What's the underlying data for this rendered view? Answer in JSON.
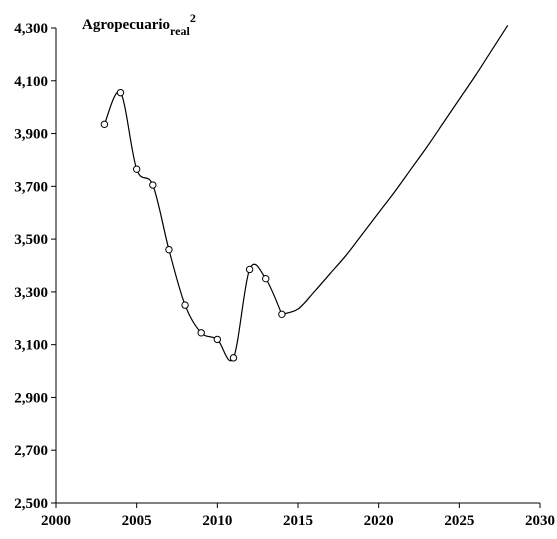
{
  "chart_data": {
    "type": "line",
    "title": {
      "base": "Agropecuario",
      "subscript": "real",
      "superscript": "2"
    },
    "xlabel": "",
    "ylabel": "",
    "xlim": [
      2000,
      2030
    ],
    "ylim": [
      2500,
      4300
    ],
    "x_ticks": [
      2000,
      2005,
      2010,
      2015,
      2020,
      2025,
      2030
    ],
    "x_tick_labels": [
      "2000",
      "2005",
      "2010",
      "2015",
      "2020",
      "2025",
      "2030"
    ],
    "y_ticks": [
      2500,
      2700,
      2900,
      3100,
      3300,
      3500,
      3700,
      3900,
      4100,
      4300
    ],
    "y_tick_labels": [
      "2,500",
      "2,700",
      "2,900",
      "3,100",
      "3,300",
      "3,500",
      "3,700",
      "3,900",
      "4,100",
      "4,300"
    ],
    "grid": false,
    "legend": "none",
    "series": [
      {
        "points": [
          {
            "x": 2003,
            "y": 3935
          },
          {
            "x": 2004,
            "y": 4055
          },
          {
            "x": 2005,
            "y": 3765
          },
          {
            "x": 2006,
            "y": 3705
          },
          {
            "x": 2007,
            "y": 3460
          },
          {
            "x": 2008,
            "y": 3250
          },
          {
            "x": 2009,
            "y": 3145
          },
          {
            "x": 2010,
            "y": 3120
          },
          {
            "x": 2011,
            "y": 3050
          },
          {
            "x": 2012,
            "y": 3385
          },
          {
            "x": 2013,
            "y": 3350
          },
          {
            "x": 2014,
            "y": 3215
          }
        ],
        "projection": [
          {
            "x": 2014,
            "y": 3215
          },
          {
            "x": 2015,
            "y": 3235
          },
          {
            "x": 2016,
            "y": 3300
          },
          {
            "x": 2017,
            "y": 3370
          },
          {
            "x": 2018,
            "y": 3440
          },
          {
            "x": 2019,
            "y": 3520
          },
          {
            "x": 2020,
            "y": 3600
          },
          {
            "x": 2021,
            "y": 3680
          },
          {
            "x": 2022,
            "y": 3765
          },
          {
            "x": 2023,
            "y": 3850
          },
          {
            "x": 2024,
            "y": 3940
          },
          {
            "x": 2025,
            "y": 4030
          },
          {
            "x": 2026,
            "y": 4120
          },
          {
            "x": 2027,
            "y": 4215
          },
          {
            "x": 2028,
            "y": 4310
          }
        ]
      }
    ],
    "colors": {
      "line": "#000000",
      "marker_fill": "#ffffff",
      "marker_stroke": "#000000",
      "axis": "#000000"
    }
  }
}
